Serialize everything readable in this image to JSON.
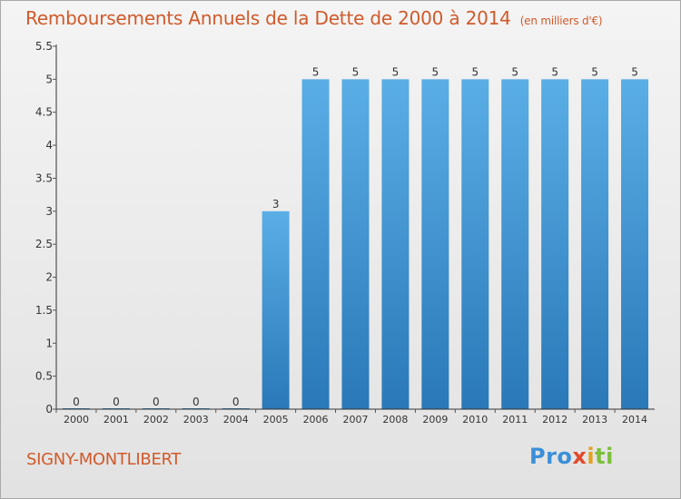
{
  "title": "Remboursements Annuels de la Dette de 2000 à 2014",
  "unit": "(en milliers d'€)",
  "town": "SIGNY-MONTLIBERT",
  "logo": {
    "text": "Proxiti",
    "colors": [
      "#3a8fd8",
      "#e3a21f",
      "#e2492a",
      "#7bbf3a"
    ]
  },
  "colors": {
    "title": "#d05a2a",
    "bar_top": "#5aaee6",
    "bar_bottom": "#2a78b8",
    "axis": "#333333",
    "grid_tick": "#555555"
  },
  "chart_data": {
    "type": "bar",
    "categories": [
      "2000",
      "2001",
      "2002",
      "2003",
      "2004",
      "2005",
      "2006",
      "2007",
      "2008",
      "2009",
      "2010",
      "2011",
      "2012",
      "2013",
      "2014"
    ],
    "values": [
      0,
      0,
      0,
      0,
      0,
      3,
      5,
      5,
      5,
      5,
      5,
      5,
      5,
      5,
      5
    ],
    "ylim": [
      0,
      5.5
    ],
    "yticks": [
      0,
      0.5,
      1,
      1.5,
      2,
      2.5,
      3,
      3.5,
      4,
      4.5,
      5,
      5.5
    ],
    "ytick_labels": [
      "0",
      "0.5",
      "1",
      "1.5",
      "2",
      "2.5",
      "3",
      "3.5",
      "4",
      "4.5",
      "5",
      "5.5"
    ],
    "grid": false,
    "data_labels": true
  }
}
